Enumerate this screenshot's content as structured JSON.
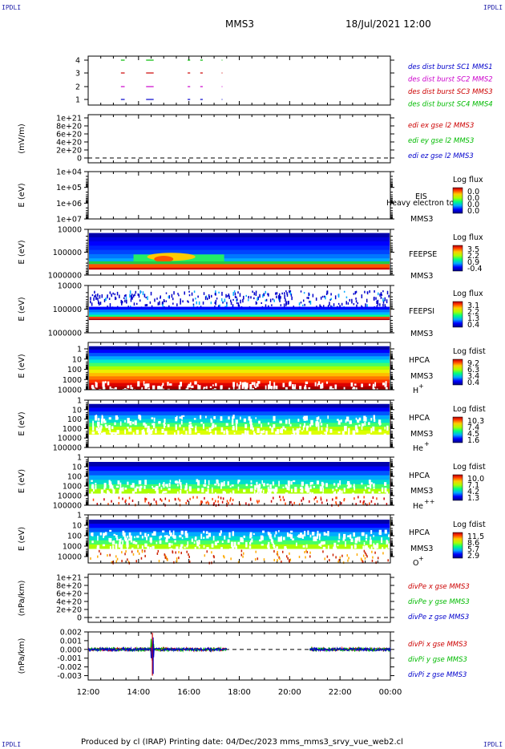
{
  "corners": {
    "tl": "IPDLI",
    "tr": "IPDLI",
    "bl": "IPDLI",
    "br": "IPDLI"
  },
  "header": {
    "spacecraft": "MMS3",
    "datetime": "18/Jul/2021 12:00"
  },
  "footer": "Produced by cl (IRAP)    Printing date: 04/Dec/2023    mms_mms3_srvy_vue_web2.cl",
  "colors": {
    "blue": "#0000cc",
    "magenta": "#cc00cc",
    "red": "#cc0000",
    "green": "#00bb00"
  },
  "chart_data": [
    {
      "type": "scatter",
      "panel": "burst",
      "yticks": [
        "1",
        "2",
        "3",
        "4"
      ],
      "legend": [
        "des dist burst SC1 MMS1",
        "des dist burst SC2 MMS2",
        "des dist burst SC3 MMS3",
        "des dist burst SC4 MMS4"
      ],
      "intervals_hours": [
        [
          13.3,
          13.45
        ],
        [
          14.3,
          14.6
        ],
        [
          15.95,
          16.05
        ],
        [
          16.45,
          16.55
        ]
      ]
    },
    {
      "type": "line",
      "panel": "edi",
      "ylabel": "(mV/m)",
      "yticks": [
        "0",
        "2e+20",
        "4e+20",
        "6e+20",
        "8e+20",
        "1e+21"
      ],
      "legend": [
        "edi ex gse l2 MMS3",
        "edi ey gse l2 MMS3",
        "edi ez gse l2 MMS3"
      ]
    },
    {
      "type": "heatmap",
      "panel": "eis",
      "ylabel": "E (eV)",
      "yticks": [
        "1e+04",
        "1e+05",
        "1e+06",
        "1e+07"
      ],
      "label1": "EIS",
      "label2": "MMS3",
      "overlay": "Heavy electron to",
      "cb_title": "Log flux",
      "cb_ticks": [
        "0.0",
        "0.0",
        "0.0",
        "0.0"
      ]
    },
    {
      "type": "heatmap",
      "panel": "feeps_e",
      "ylabel": "E (eV)",
      "yticks": [
        "10000",
        "100000",
        "1000000"
      ],
      "label1": "FEEPSE",
      "label2": "MMS3",
      "cb_title": "Log flux",
      "cb_ticks": [
        "3.5",
        "2.2",
        "0.9",
        "-0.4"
      ]
    },
    {
      "type": "heatmap",
      "panel": "feeps_i",
      "ylabel": "E (eV)",
      "yticks": [
        "10000",
        "100000",
        "1000000"
      ],
      "label1": "FEEPSI",
      "label2": "MMS3",
      "cb_title": "Log flux",
      "cb_ticks": [
        "3.1",
        "2.2",
        "1.3",
        "0.4"
      ]
    },
    {
      "type": "heatmap",
      "panel": "hpca_h",
      "ylabel": "E (eV)",
      "yticks": [
        "1",
        "10",
        "100",
        "1000",
        "10000"
      ],
      "label1": "HPCA",
      "label2": "MMS3",
      "species": "H",
      "charge": "+",
      "cb_title": "Log fdist",
      "cb_ticks": [
        "9.2",
        "6.3",
        "3.4",
        "0.4"
      ]
    },
    {
      "type": "heatmap",
      "panel": "hpca_he1",
      "ylabel": "E (eV)",
      "yticks": [
        "1",
        "10",
        "100",
        "1000",
        "10000",
        "100000"
      ],
      "label1": "HPCA",
      "label2": "MMS3",
      "species": "He",
      "charge": "+",
      "cb_title": "Log fdist",
      "cb_ticks": [
        "10.3",
        "7.4",
        "4.5",
        "1.6"
      ]
    },
    {
      "type": "heatmap",
      "panel": "hpca_he2",
      "ylabel": "E (eV)",
      "yticks": [
        "1",
        "10",
        "100",
        "1000",
        "10000",
        "100000"
      ],
      "label1": "HPCA",
      "label2": "MMS3",
      "species": "He",
      "charge": "++",
      "cb_title": "Log fdist",
      "cb_ticks": [
        "10.0",
        "7.1",
        "4.2",
        "1.3"
      ]
    },
    {
      "type": "heatmap",
      "panel": "hpca_o",
      "ylabel": "E (eV)",
      "yticks": [
        "1",
        "10",
        "100",
        "1000",
        "10000"
      ],
      "label1": "HPCA",
      "label2": "MMS3",
      "species": "O",
      "charge": "+",
      "cb_title": "Log fdist",
      "cb_ticks": [
        "11.5",
        "8.6",
        "5.7",
        "2.9"
      ]
    },
    {
      "type": "line",
      "panel": "divpe",
      "ylabel": "(nPa/km)",
      "yticks": [
        "0",
        "2e+20",
        "4e+20",
        "6e+20",
        "8e+20",
        "1e+21"
      ],
      "legend": [
        "divPe x gse MMS3",
        "divPe y gse MMS3",
        "divPe z gse MMS3"
      ]
    },
    {
      "type": "line",
      "panel": "divpi",
      "ylabel": "(nPa/km)",
      "yticks": [
        "-0.003",
        "-0.002",
        "-0.001",
        "0.000",
        "0.001",
        "0.002"
      ],
      "legend": [
        "divPi x gse MMS3",
        "divPi y gse MMS3",
        "divPi z gse MMS3"
      ],
      "ylim": [
        -0.0035,
        0.002
      ],
      "data_gap_hours": [
        17.5,
        20.8
      ],
      "spike_hours": 14.55
    }
  ],
  "xaxis": {
    "ticks": [
      "12:00",
      "14:00",
      "16:00",
      "18:00",
      "20:00",
      "22:00",
      "00:00"
    ]
  }
}
